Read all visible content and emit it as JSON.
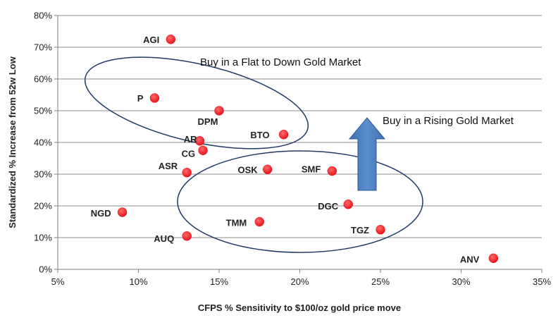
{
  "chart_data": {
    "type": "scatter",
    "xlabel": "CFPS % Sensitivity to $100/oz gold price move",
    "ylabel": "Standardized % Increase from 52w Low",
    "xlim": [
      5,
      35
    ],
    "ylim": [
      0,
      80
    ],
    "x_ticks": [
      {
        "value": 5,
        "label": "5%"
      },
      {
        "value": 10,
        "label": "10%"
      },
      {
        "value": 15,
        "label": "15%"
      },
      {
        "value": 20,
        "label": "20%"
      },
      {
        "value": 25,
        "label": "25%"
      },
      {
        "value": 30,
        "label": "30%"
      },
      {
        "value": 35,
        "label": "35%"
      }
    ],
    "y_ticks": [
      {
        "value": 0,
        "label": "0%"
      },
      {
        "value": 10,
        "label": "10%"
      },
      {
        "value": 20,
        "label": "20%"
      },
      {
        "value": 30,
        "label": "30%"
      },
      {
        "value": 40,
        "label": "40%"
      },
      {
        "value": 50,
        "label": "50%"
      },
      {
        "value": 60,
        "label": "60%"
      },
      {
        "value": 70,
        "label": "70%"
      },
      {
        "value": 80,
        "label": "80%"
      }
    ],
    "grid": "horizontal",
    "point_color": "#e8141c",
    "points": [
      {
        "label": "AGI",
        "x": 12.0,
        "y": 72.5
      },
      {
        "label": "P",
        "x": 11.0,
        "y": 54.0
      },
      {
        "label": "DPM",
        "x": 15.0,
        "y": 50.0
      },
      {
        "label": "AR",
        "x": 13.8,
        "y": 40.5
      },
      {
        "label": "CG",
        "x": 14.0,
        "y": 37.5
      },
      {
        "label": "BTO",
        "x": 19.0,
        "y": 42.5
      },
      {
        "label": "ASR",
        "x": 13.0,
        "y": 30.5
      },
      {
        "label": "OSK",
        "x": 18.0,
        "y": 31.5
      },
      {
        "label": "SMF",
        "x": 22.0,
        "y": 31.0
      },
      {
        "label": "DGC",
        "x": 23.0,
        "y": 20.5
      },
      {
        "label": "TMM",
        "x": 17.5,
        "y": 15.0
      },
      {
        "label": "TGZ",
        "x": 25.0,
        "y": 12.5
      },
      {
        "label": "NGD",
        "x": 9.0,
        "y": 18.0
      },
      {
        "label": "AUQ",
        "x": 13.0,
        "y": 10.5
      },
      {
        "label": "ANV",
        "x": 32.0,
        "y": 3.5
      }
    ],
    "annotations": [
      {
        "text": "Buy in a Flat to Down Gold Market"
      },
      {
        "text": "Buy in a Rising Gold Market"
      }
    ],
    "ellipse_color": "#1f3864",
    "arrow_color": "#4a7dbf"
  }
}
